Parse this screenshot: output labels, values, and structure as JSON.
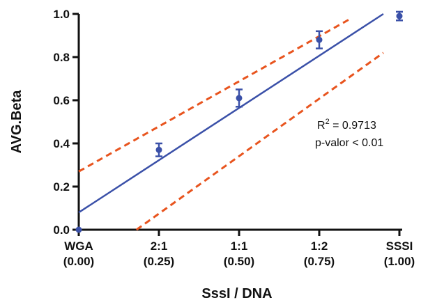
{
  "chart_data": {
    "type": "scatter",
    "xlabel": "SssI / DNA",
    "ylabel": "AVG.Beta",
    "xlim": [
      0,
      1
    ],
    "ylim": [
      0,
      1
    ],
    "x_ticks": [
      {
        "value": 0.0,
        "line1": "WGA",
        "line2": "(0.00)"
      },
      {
        "value": 0.25,
        "line1": "2:1",
        "line2": "(0.25)"
      },
      {
        "value": 0.5,
        "line1": "1:1",
        "line2": "(0.50)"
      },
      {
        "value": 0.75,
        "line1": "1:2",
        "line2": "(0.75)"
      },
      {
        "value": 1.0,
        "line1": "SSSI",
        "line2": "(1.00)"
      }
    ],
    "y_ticks": [
      "0.0",
      "0.2",
      "0.4",
      "0.6",
      "0.8",
      "1.0"
    ],
    "points": [
      {
        "x": 0.0,
        "y": 0.0,
        "err": 0.0
      },
      {
        "x": 0.25,
        "y": 0.37,
        "err": 0.03
      },
      {
        "x": 0.5,
        "y": 0.61,
        "err": 0.04
      },
      {
        "x": 0.75,
        "y": 0.88,
        "err": 0.04
      },
      {
        "x": 1.0,
        "y": 0.99,
        "err": 0.02
      }
    ],
    "fit_line": {
      "x": [
        0.0,
        0.95
      ],
      "y": [
        0.08,
        1.0
      ]
    },
    "confidence_upper": {
      "x": [
        0.0,
        0.85
      ],
      "y": [
        0.27,
        0.98
      ]
    },
    "confidence_lower": {
      "x": [
        0.18,
        0.95
      ],
      "y": [
        0.0,
        0.82
      ]
    },
    "annotation": {
      "r2_prefix": "R",
      "r2_sup": "2",
      "r2_suffix": " = 0.9713",
      "pvalue": "p-valor  < 0.01"
    },
    "colors": {
      "points": "#3a50a8",
      "fit": "#3a50a8",
      "confidence": "#e8541e",
      "axis": "#111111"
    }
  }
}
